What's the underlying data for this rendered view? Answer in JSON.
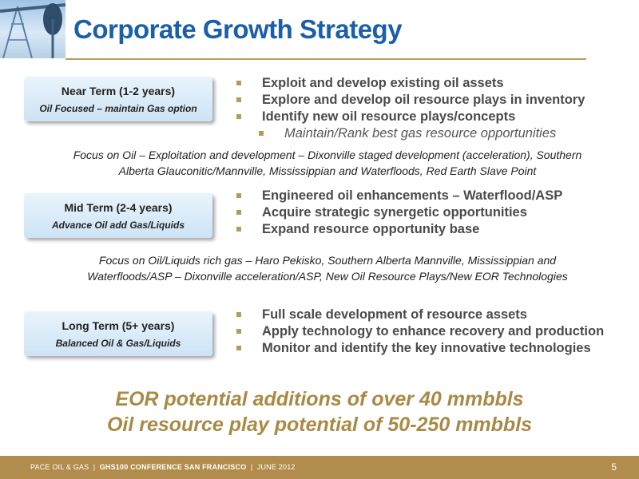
{
  "header": {
    "title": "Corporate Growth Strategy"
  },
  "near_term": {
    "title": "Near Term (1-2 years)",
    "subtitle": "Oil Focused – maintain Gas option",
    "bullets": [
      "Exploit and develop existing oil assets",
      "Explore and develop oil resource plays in inventory",
      "Identify new oil resource plays/concepts"
    ],
    "sub_bullet": "Maintain/Rank best gas resource opportunities",
    "focus_line1": "Focus on Oil – Exploitation and development – Dixonville staged development (acceleration), Southern",
    "focus_line2": "Alberta Glauconitic/Mannville, Mississippian and Waterfloods, Red Earth Slave Point"
  },
  "mid_term": {
    "title": "Mid Term (2-4 years)",
    "subtitle": "Advance Oil add Gas/Liquids",
    "bullets": [
      "Engineered oil enhancements – Waterflood/ASP",
      "Acquire strategic synergetic opportunities",
      "Expand resource opportunity base"
    ],
    "focus_line1": "Focus on Oil/Liquids rich gas  – Haro Pekisko, Southern Alberta Mannville, Mississippian  and",
    "focus_line2": "Waterfloods/ASP – Dixonville acceleration/ASP, New Oil Resource Plays/New EOR Technologies"
  },
  "long_term": {
    "title": "Long Term (5+ years)",
    "subtitle": "Balanced Oil & Gas/Liquids",
    "bullets": [
      "Full scale development of resource assets",
      "Apply technology to enhance recovery and production",
      "Monitor and identify the key innovative technologies"
    ]
  },
  "highlights": {
    "line1": "EOR potential additions of over 40 mmbbls",
    "line2": "Oil resource play potential of 50-250 mmbbls"
  },
  "footer": {
    "company": "PACE OIL & GAS",
    "separator": "|",
    "conference": "GHS100 CONFERENCE SAN FRANCISCO",
    "date": "JUNE 2012",
    "page_number": "5"
  },
  "colors": {
    "title_blue": "#1a5fa8",
    "accent_gold": "#b28c4c",
    "highlight_gold": "#a88a45",
    "box_blue": "#cde3f5"
  },
  "icons": {
    "logo_image": "oil-pumpjack-icon",
    "bullet": "square-bullet-icon"
  }
}
